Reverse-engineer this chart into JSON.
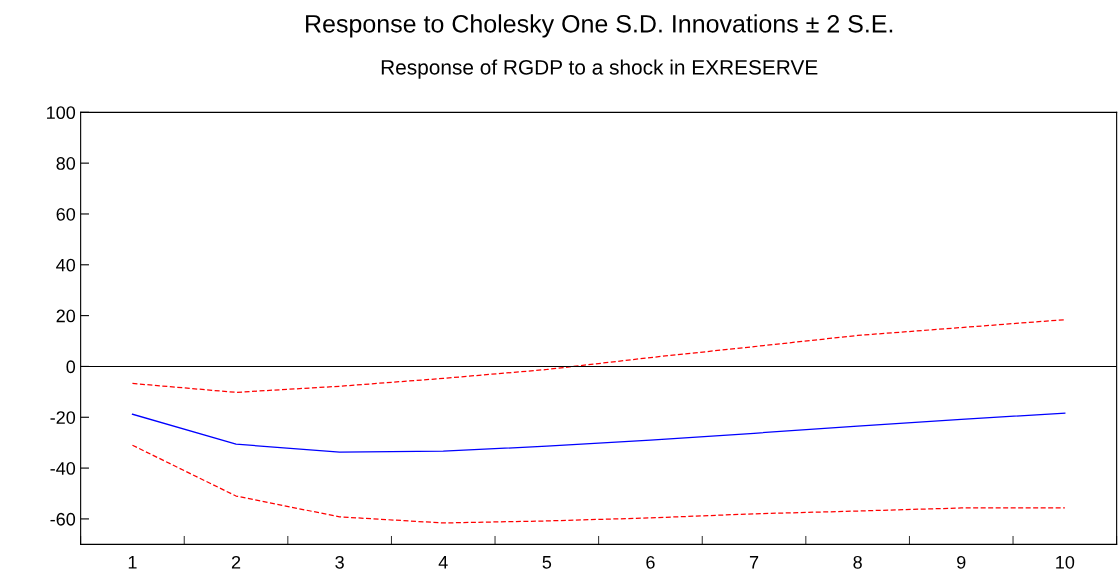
{
  "chart_data": {
    "type": "line",
    "title": "Response to Cholesky One S.D. Innovations ± 2 S.E.",
    "subtitle": "Response of RGDP to a shock in EXRESERVE",
    "categories": [
      "1",
      "2",
      "3",
      "4",
      "5",
      "6",
      "7",
      "8",
      "9",
      "10"
    ],
    "series": [
      {
        "color": "#0000ff",
        "line_style": "solid",
        "values": [
          -18.8,
          -30.6,
          -33.7,
          -33.3,
          -31.4,
          -29,
          -26.3,
          -23.5,
          -20.8,
          -18.4
        ]
      },
      {
        "color": "#ff0000",
        "line_style": "dashed",
        "values": [
          -6.7,
          -10.2,
          -7.8,
          -4.7,
          -1.2,
          3.5,
          7.8,
          12.2,
          15.3,
          18.4
        ]
      },
      {
        "color": "#ff0000",
        "line_style": "dashed",
        "values": [
          -31,
          -51,
          -59.2,
          -61.6,
          -60.8,
          -59.6,
          -58,
          -56.9,
          -55.7,
          -55.7
        ]
      }
    ],
    "ylim": [
      -70,
      100
    ],
    "yticks": [
      -60,
      -40,
      -20,
      0,
      20,
      40,
      60,
      80,
      100
    ],
    "ref_lines": [
      {
        "axis": "y",
        "value": 0,
        "color": "#000000",
        "line_style": "solid"
      }
    ],
    "grid": false,
    "marker": "none"
  }
}
